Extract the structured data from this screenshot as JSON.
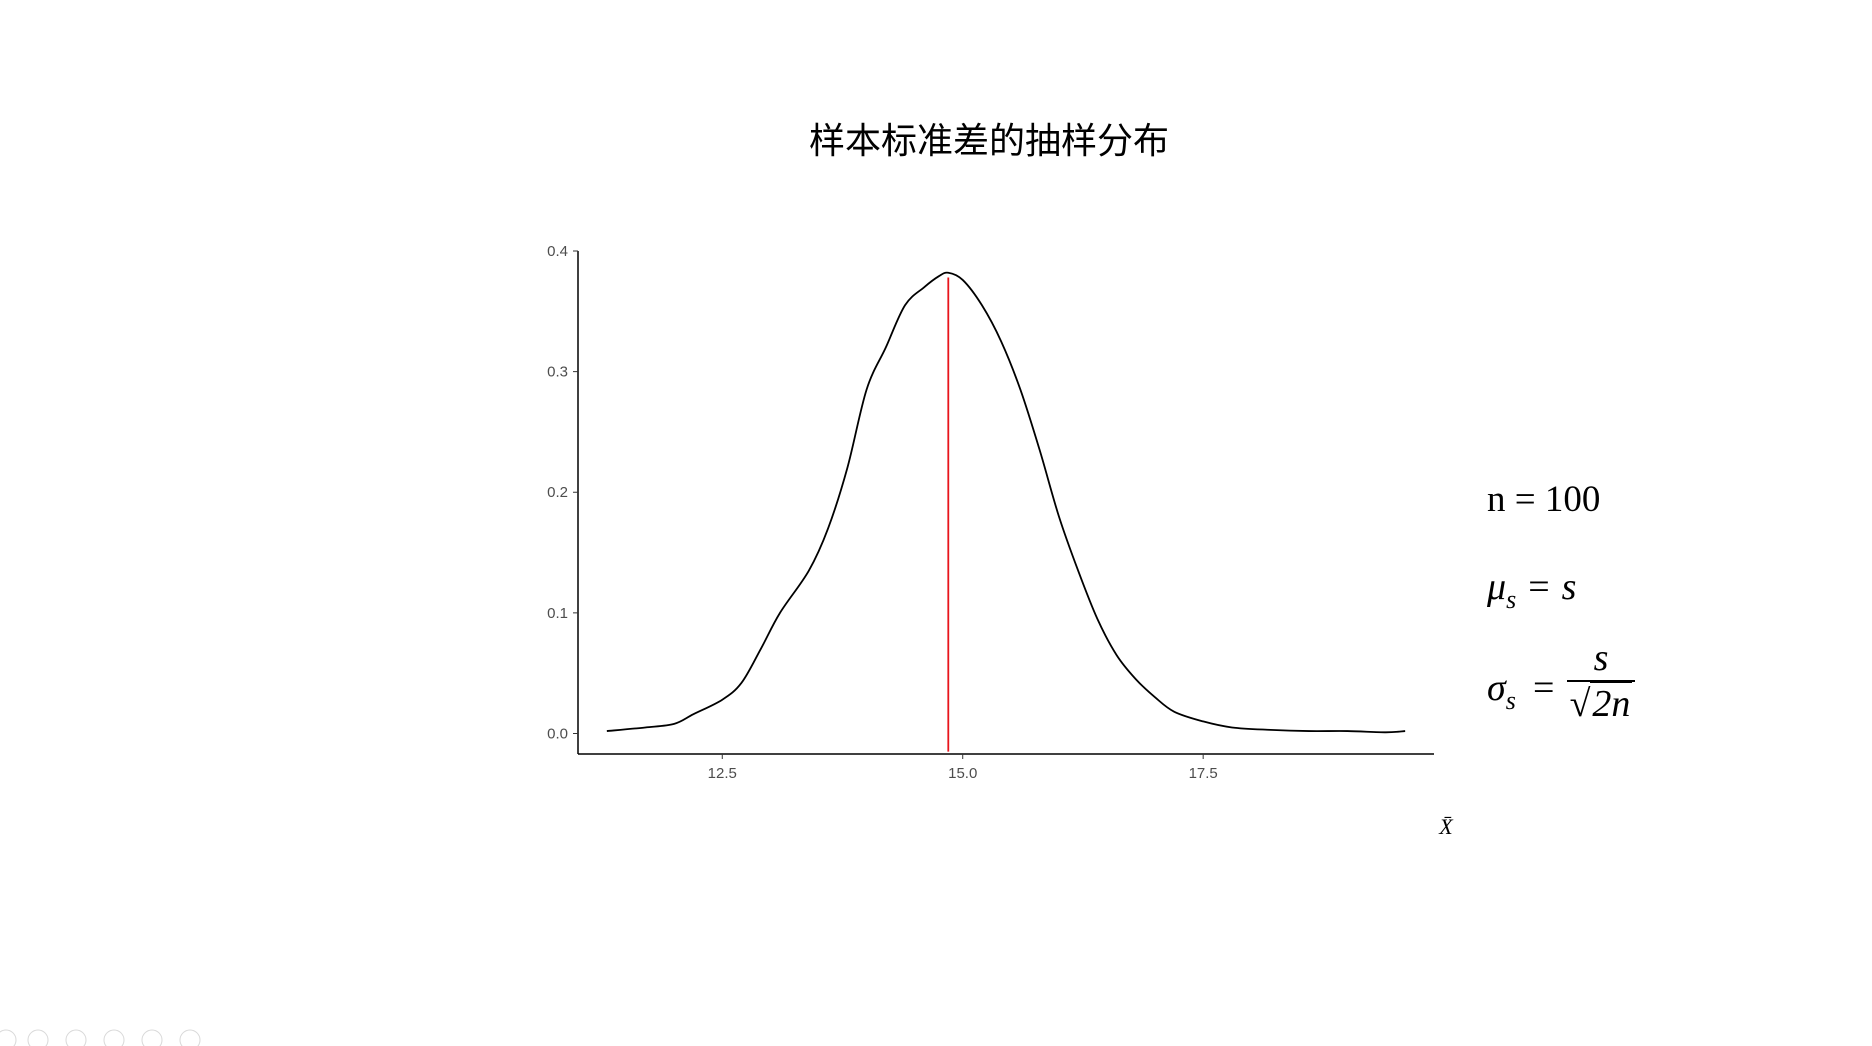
{
  "slide": {
    "title": "样本标准差的抽样分布",
    "formulas": {
      "n_line": "n = 100",
      "mu_symbol": "μ",
      "mu_sub": "s",
      "mu_eq": "=",
      "mu_rhs": "s",
      "sigma_symbol": "σ",
      "sigma_sub": "s",
      "sigma_eq": "=",
      "sigma_num": "s",
      "sigma_den": "2n",
      "sigma_sqrt": "√"
    }
  },
  "chart_data": {
    "type": "line",
    "title": "",
    "xlabel": "X̄",
    "ylabel": "",
    "xlim": [
      11.0,
      19.9
    ],
    "ylim": [
      -0.017,
      0.4
    ],
    "xticks": [
      12.5,
      15.0,
      17.5
    ],
    "xtick_labels": [
      "12.5",
      "15.0",
      "17.5"
    ],
    "yticks": [
      0.0,
      0.1,
      0.2,
      0.3,
      0.4
    ],
    "ytick_labels": [
      "0.0",
      "0.1",
      "0.2",
      "0.3",
      "0.4"
    ],
    "grid": false,
    "series": [
      {
        "color": "#000000",
        "x": [
          11.3,
          11.7,
          12.0,
          12.2,
          12.5,
          12.7,
          12.9,
          13.1,
          13.4,
          13.6,
          13.8,
          14.0,
          14.2,
          14.4,
          14.6,
          14.75,
          14.85,
          15.0,
          15.2,
          15.4,
          15.6,
          15.8,
          16.0,
          16.2,
          16.4,
          16.6,
          16.8,
          17.0,
          17.2,
          17.5,
          17.8,
          18.2,
          18.6,
          19.0,
          19.4,
          19.6
        ],
        "y": [
          0.002,
          0.005,
          0.008,
          0.016,
          0.028,
          0.042,
          0.07,
          0.1,
          0.135,
          0.17,
          0.22,
          0.285,
          0.32,
          0.355,
          0.37,
          0.379,
          0.382,
          0.376,
          0.355,
          0.325,
          0.285,
          0.235,
          0.18,
          0.135,
          0.095,
          0.065,
          0.045,
          0.03,
          0.018,
          0.01,
          0.005,
          0.003,
          0.002,
          0.002,
          0.001,
          0.002
        ]
      }
    ],
    "reference_line": {
      "orientation": "vertical",
      "x": 14.85,
      "y_from": -0.015,
      "y_to": 0.378,
      "color": "#e8141c"
    }
  }
}
